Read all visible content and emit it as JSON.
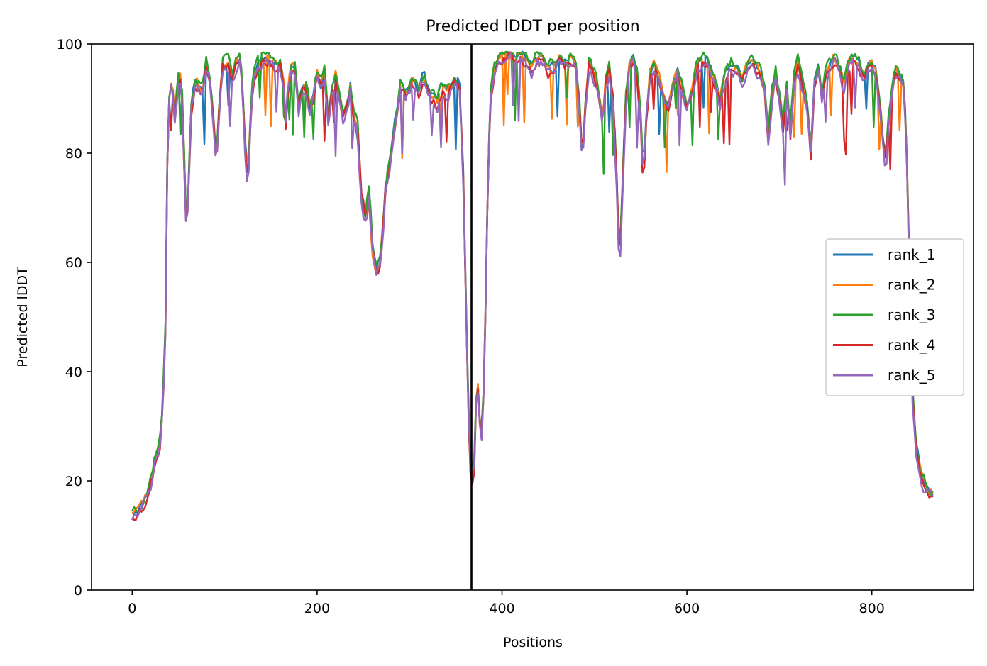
{
  "chart_data": {
    "type": "line",
    "title": "Predicted lDDT per position",
    "xlabel": "Positions",
    "ylabel": "Predicted lDDT",
    "xlim": [
      -44,
      910
    ],
    "ylim": [
      0,
      100
    ],
    "xticks": [
      0,
      200,
      400,
      600,
      800
    ],
    "yticks": [
      0,
      20,
      40,
      60,
      80,
      100
    ],
    "grid": false,
    "legend_position": "center-right",
    "vertical_line": {
      "x": 367,
      "color": "#000000"
    },
    "base_profile": [
      [
        0,
        14
      ],
      [
        10,
        15
      ],
      [
        18,
        18
      ],
      [
        25,
        24
      ],
      [
        30,
        27
      ],
      [
        33,
        33
      ],
      [
        36,
        48
      ],
      [
        38,
        78
      ],
      [
        40,
        90
      ],
      [
        43,
        93
      ],
      [
        46,
        86
      ],
      [
        49,
        92
      ],
      [
        52,
        94
      ],
      [
        55,
        88
      ],
      [
        57,
        72
      ],
      [
        59,
        66
      ],
      [
        61,
        74
      ],
      [
        64,
        88
      ],
      [
        68,
        93
      ],
      [
        72,
        92
      ],
      [
        76,
        91
      ],
      [
        80,
        96
      ],
      [
        84,
        93
      ],
      [
        88,
        86
      ],
      [
        91,
        78
      ],
      [
        94,
        88
      ],
      [
        98,
        96
      ],
      [
        104,
        96
      ],
      [
        108,
        93
      ],
      [
        112,
        96
      ],
      [
        116,
        97
      ],
      [
        119,
        93
      ],
      [
        122,
        82
      ],
      [
        125,
        75
      ],
      [
        128,
        86
      ],
      [
        131,
        94
      ],
      [
        136,
        96
      ],
      [
        142,
        97
      ],
      [
        148,
        97
      ],
      [
        154,
        96
      ],
      [
        160,
        96
      ],
      [
        164,
        92
      ],
      [
        166,
        85
      ],
      [
        169,
        93
      ],
      [
        173,
        96
      ],
      [
        176,
        95
      ],
      [
        180,
        88
      ],
      [
        184,
        92
      ],
      [
        188,
        92
      ],
      [
        192,
        88
      ],
      [
        196,
        90
      ],
      [
        200,
        94
      ],
      [
        204,
        92
      ],
      [
        208,
        95
      ],
      [
        212,
        86
      ],
      [
        216,
        92
      ],
      [
        220,
        94
      ],
      [
        224,
        90
      ],
      [
        228,
        86
      ],
      [
        232,
        88
      ],
      [
        236,
        92
      ],
      [
        240,
        86
      ],
      [
        244,
        83
      ],
      [
        248,
        72
      ],
      [
        252,
        68
      ],
      [
        256,
        72
      ],
      [
        260,
        62
      ],
      [
        264,
        58
      ],
      [
        268,
        60
      ],
      [
        271,
        66
      ],
      [
        274,
        73
      ],
      [
        278,
        78
      ],
      [
        282,
        82
      ],
      [
        286,
        87
      ],
      [
        290,
        92
      ],
      [
        295,
        91
      ],
      [
        300,
        92
      ],
      [
        305,
        93
      ],
      [
        310,
        91
      ],
      [
        315,
        94
      ],
      [
        320,
        91
      ],
      [
        325,
        90
      ],
      [
        330,
        89
      ],
      [
        335,
        92
      ],
      [
        340,
        91
      ],
      [
        345,
        92
      ],
      [
        350,
        93
      ],
      [
        354,
        92
      ],
      [
        358,
        76
      ],
      [
        362,
        45
      ],
      [
        365,
        24
      ],
      [
        367,
        19
      ],
      [
        370,
        23
      ],
      [
        373,
        40
      ],
      [
        376,
        30
      ],
      [
        379,
        28
      ],
      [
        382,
        50
      ],
      [
        385,
        78
      ],
      [
        388,
        91
      ],
      [
        392,
        95
      ],
      [
        397,
        97
      ],
      [
        402,
        98
      ],
      [
        408,
        98
      ],
      [
        414,
        97
      ],
      [
        420,
        98
      ],
      [
        426,
        97
      ],
      [
        432,
        95
      ],
      [
        438,
        97
      ],
      [
        444,
        97
      ],
      [
        450,
        95
      ],
      [
        456,
        96
      ],
      [
        462,
        97
      ],
      [
        468,
        96
      ],
      [
        474,
        97
      ],
      [
        480,
        96
      ],
      [
        484,
        88
      ],
      [
        487,
        78
      ],
      [
        490,
        88
      ],
      [
        494,
        96
      ],
      [
        500,
        94
      ],
      [
        505,
        90
      ],
      [
        509,
        86
      ],
      [
        512,
        93
      ],
      [
        516,
        95
      ],
      [
        520,
        90
      ],
      [
        524,
        75
      ],
      [
        527,
        60
      ],
      [
        530,
        72
      ],
      [
        534,
        90
      ],
      [
        538,
        96
      ],
      [
        542,
        97
      ],
      [
        546,
        94
      ],
      [
        550,
        86
      ],
      [
        553,
        74
      ],
      [
        556,
        86
      ],
      [
        560,
        94
      ],
      [
        565,
        96
      ],
      [
        570,
        93
      ],
      [
        575,
        90
      ],
      [
        580,
        88
      ],
      [
        586,
        93
      ],
      [
        590,
        95
      ],
      [
        595,
        92
      ],
      [
        600,
        88
      ],
      [
        606,
        92
      ],
      [
        612,
        96
      ],
      [
        618,
        97
      ],
      [
        624,
        96
      ],
      [
        630,
        93
      ],
      [
        636,
        90
      ],
      [
        642,
        94
      ],
      [
        648,
        96
      ],
      [
        654,
        95
      ],
      [
        660,
        93
      ],
      [
        666,
        96
      ],
      [
        672,
        97
      ],
      [
        678,
        95
      ],
      [
        684,
        92
      ],
      [
        688,
        82
      ],
      [
        692,
        90
      ],
      [
        696,
        94
      ],
      [
        700,
        90
      ],
      [
        704,
        85
      ],
      [
        708,
        92
      ],
      [
        712,
        84
      ],
      [
        716,
        93
      ],
      [
        720,
        96
      ],
      [
        725,
        92
      ],
      [
        730,
        88
      ],
      [
        734,
        80
      ],
      [
        738,
        93
      ],
      [
        742,
        95
      ],
      [
        746,
        90
      ],
      [
        750,
        94
      ],
      [
        755,
        96
      ],
      [
        760,
        97
      ],
      [
        765,
        95
      ],
      [
        770,
        92
      ],
      [
        775,
        96
      ],
      [
        780,
        97
      ],
      [
        786,
        96
      ],
      [
        792,
        94
      ],
      [
        798,
        96
      ],
      [
        804,
        95
      ],
      [
        808,
        90
      ],
      [
        812,
        82
      ],
      [
        815,
        78
      ],
      [
        818,
        86
      ],
      [
        822,
        92
      ],
      [
        826,
        95
      ],
      [
        830,
        94
      ],
      [
        835,
        92
      ],
      [
        838,
        78
      ],
      [
        841,
        55
      ],
      [
        844,
        36
      ],
      [
        848,
        26
      ],
      [
        852,
        22
      ],
      [
        858,
        19
      ],
      [
        862,
        18
      ],
      [
        866,
        17
      ]
    ],
    "series": [
      {
        "name": "rank_1",
        "color": "#1f77b4",
        "seed": 11,
        "offset": 0.5,
        "amp": 1.3
      },
      {
        "name": "rank_2",
        "color": "#ff7f0e",
        "seed": 23,
        "offset": 0.6,
        "amp": 1.4
      },
      {
        "name": "rank_3",
        "color": "#2ca02c",
        "seed": 37,
        "offset": 1.0,
        "amp": 1.6
      },
      {
        "name": "rank_4",
        "color": "#d62728",
        "seed": 53,
        "offset": -0.3,
        "amp": 1.5
      },
      {
        "name": "rank_5",
        "color": "#9467bd",
        "seed": 71,
        "offset": -0.6,
        "amp": 1.8
      }
    ]
  }
}
